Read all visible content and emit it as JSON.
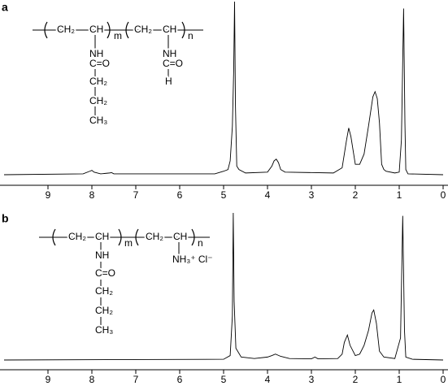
{
  "chart_data": [
    {
      "type": "line",
      "panel_label": "a",
      "structure": [
        "CH₂",
        "CH",
        "m",
        "CH₂",
        "CH",
        "n",
        "NH",
        "C=O",
        "CH₂",
        "CH₂",
        "CH₃",
        "NH",
        "C=O",
        "H"
      ],
      "x": [
        10,
        8.2,
        8.05,
        8.0,
        7.95,
        7.8,
        7.6,
        7.55,
        7.5,
        5.2,
        5.0,
        4.9,
        4.85,
        4.8,
        4.77,
        4.75,
        4.73,
        4.7,
        4.65,
        4.5,
        4.0,
        3.9,
        3.85,
        3.8,
        3.75,
        3.7,
        3.6,
        2.5,
        2.3,
        2.2,
        2.15,
        2.1,
        2.0,
        1.9,
        1.8,
        1.7,
        1.6,
        1.55,
        1.5,
        1.45,
        1.4,
        1.35,
        1.3,
        1.1,
        1.0,
        0.95,
        0.9,
        0.87,
        0.85,
        0.8,
        0
      ],
      "series": [
        {
          "color": "#000000",
          "values": [
            0,
            0.5,
            2,
            2.5,
            1.5,
            0.5,
            1,
            1.2,
            0.5,
            0.5,
            2,
            3,
            8,
            28,
            60,
            100,
            40,
            5,
            3,
            1,
            1.5,
            5,
            8,
            9,
            7,
            3,
            1.5,
            1,
            4,
            20,
            27,
            22,
            6,
            6,
            12,
            28,
            45,
            48,
            44,
            30,
            6,
            3,
            2,
            1,
            1.5,
            20,
            96,
            30,
            3,
            0.5,
            0
          ]
        }
      ],
      "xlim": [
        10,
        0
      ],
      "ylim": [
        0,
        100
      ],
      "xticks": [
        9,
        8,
        7,
        6,
        5,
        4,
        3,
        2,
        1,
        0
      ]
    },
    {
      "type": "line",
      "panel_label": "b",
      "structure": [
        "CH₂",
        "CH",
        "m",
        "CH₂",
        "CH",
        "n",
        "NH₃⁺ Cl⁻",
        "NH",
        "C=O",
        "CH₂",
        "CH₂",
        "CH₃"
      ],
      "x": [
        10,
        5.0,
        4.85,
        4.8,
        4.78,
        4.76,
        4.72,
        4.6,
        4.3,
        4.0,
        3.9,
        3.82,
        3.7,
        3.5,
        3.0,
        2.92,
        2.85,
        2.4,
        2.3,
        2.25,
        2.18,
        2.12,
        2.0,
        1.9,
        1.8,
        1.7,
        1.62,
        1.58,
        1.52,
        1.45,
        1.35,
        1.1,
        0.97,
        0.92,
        0.88,
        0.85,
        0.7,
        0
      ],
      "series": [
        {
          "color": "#000000",
          "values": [
            0,
            0.5,
            3,
            30,
            100,
            40,
            8,
            2,
            1,
            2,
            3,
            4,
            2.5,
            1,
            0.8,
            2,
            0.8,
            1,
            4,
            12,
            17,
            10,
            3,
            4,
            10,
            20,
            32,
            34,
            25,
            6,
            2,
            1,
            15,
            98,
            20,
            2,
            0.5,
            0
          ]
        }
      ],
      "xlim": [
        10,
        0
      ],
      "ylim": [
        0,
        100
      ],
      "xticks": [
        9,
        8,
        7,
        6,
        5,
        4,
        3,
        2,
        1,
        0
      ]
    }
  ]
}
